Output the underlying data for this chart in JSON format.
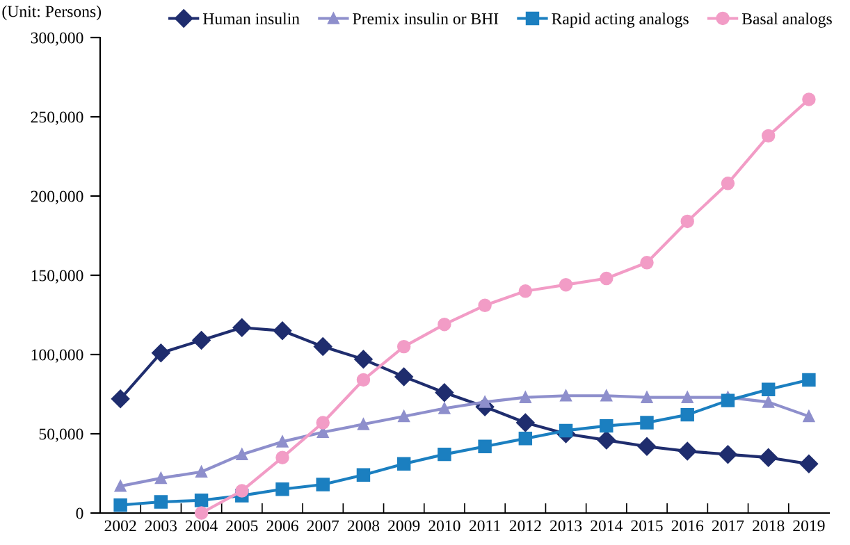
{
  "chart_data": {
    "type": "line",
    "annotations": [
      "(Unit: Persons)"
    ],
    "categories": [
      "2002",
      "2003",
      "2004",
      "2005",
      "2006",
      "2007",
      "2008",
      "2009",
      "2010",
      "2011",
      "2012",
      "2013",
      "2014",
      "2015",
      "2016",
      "2017",
      "2018",
      "2019"
    ],
    "series": [
      {
        "name": "Human insulin",
        "color": "#1f2d6e",
        "marker": "diamond",
        "values": [
          72000,
          101000,
          109000,
          117000,
          115000,
          105000,
          97000,
          86000,
          76000,
          67000,
          57000,
          50000,
          46000,
          42000,
          39000,
          37000,
          35000,
          31000
        ]
      },
      {
        "name": "Premix insulin or BHI",
        "color": "#8e8fcc",
        "marker": "triangle",
        "values": [
          17000,
          22000,
          26000,
          37000,
          45000,
          51000,
          56000,
          61000,
          66000,
          70000,
          73000,
          74000,
          74000,
          73000,
          73000,
          73000,
          70000,
          61000
        ]
      },
      {
        "name": "Rapid acting analogs",
        "color": "#1b7fc0",
        "marker": "square",
        "values": [
          5000,
          7000,
          8000,
          11000,
          15000,
          18000,
          24000,
          31000,
          37000,
          42000,
          47000,
          52000,
          55000,
          57000,
          62000,
          71000,
          78000,
          84000
        ]
      },
      {
        "name": "Basal analogs",
        "color": "#f29cc6",
        "marker": "circle",
        "values": [
          null,
          null,
          0,
          14000,
          35000,
          57000,
          84000,
          105000,
          119000,
          131000,
          140000,
          144000,
          148000,
          158000,
          184000,
          208000,
          238000,
          261000
        ]
      }
    ],
    "ylim": [
      0,
      300000
    ],
    "yticks": [
      {
        "value": 0,
        "label": "0"
      },
      {
        "value": 50000,
        "label": "50,000"
      },
      {
        "value": 100000,
        "label": "100,000"
      },
      {
        "value": 150000,
        "label": "150,000"
      },
      {
        "value": 200000,
        "label": "200,000"
      },
      {
        "value": 250000,
        "label": "250,000"
      },
      {
        "value": 300000,
        "label": "300,000"
      }
    ],
    "grid": false,
    "legend": "top",
    "line_style": "solid"
  }
}
